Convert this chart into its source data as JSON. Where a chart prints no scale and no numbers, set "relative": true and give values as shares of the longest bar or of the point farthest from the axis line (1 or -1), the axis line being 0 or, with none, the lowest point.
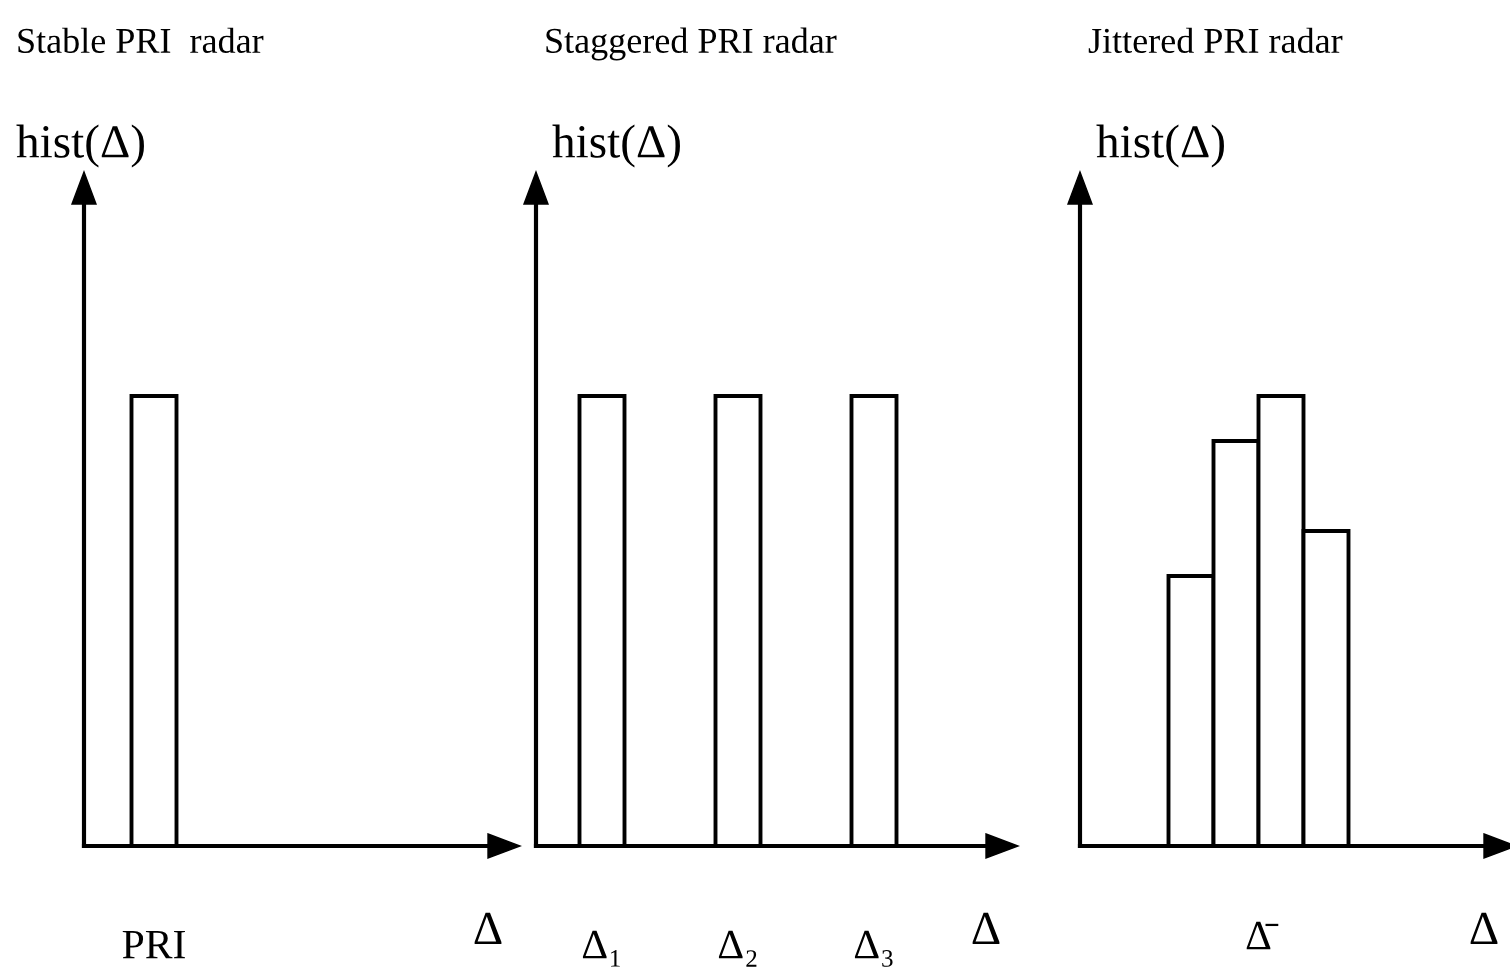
{
  "chart_data": [
    {
      "type": "bar",
      "title": "Stable PRI  radar",
      "ylabel": "hist(Δ)",
      "xlabel": "Δ",
      "relative": true,
      "tick_labels": "x",
      "grid": false,
      "legend": false,
      "categories": [
        "PRI"
      ],
      "values": [
        1
      ],
      "color": "#ffffff"
    },
    {
      "type": "bar",
      "title": "Staggered PRI radar",
      "ylabel": "hist(Δ)",
      "xlabel": "Δ",
      "relative": true,
      "tick_labels": "x",
      "grid": false,
      "legend": false,
      "categories": [
        "Δ₁",
        "Δ₂",
        "Δ₃"
      ],
      "values": [
        1,
        1,
        1
      ],
      "color": "#ffffff"
    },
    {
      "type": "bar",
      "title": "Jittered PRI radar",
      "ylabel": "hist(Δ)",
      "xlabel": "Δ",
      "relative": true,
      "tick_labels": "x",
      "grid": false,
      "legend": false,
      "categories": [
        null,
        null,
        null,
        null
      ],
      "annotations": [
        "Δ̄"
      ],
      "values": [
        0.6,
        0.9,
        1,
        0.7
      ],
      "color": "#ffffff"
    }
  ]
}
